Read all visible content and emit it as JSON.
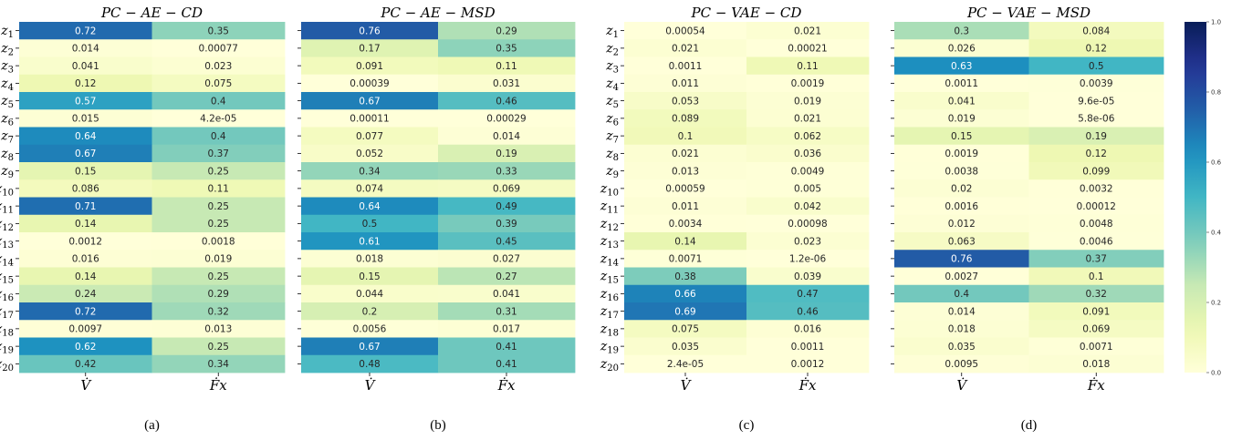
{
  "chart_data": [
    {
      "type": "heatmap",
      "title": "PC − AE − CD",
      "caption": "(a)",
      "columns": [
        "V̇",
        "Ḟx"
      ],
      "rows": [
        "z1",
        "z2",
        "z3",
        "z4",
        "z5",
        "z6",
        "z7",
        "z8",
        "z9",
        "z10",
        "z11",
        "z12",
        "z13",
        "z14",
        "z15",
        "z16",
        "z17",
        "z18",
        "z19",
        "z20"
      ],
      "values": [
        [
          0.72,
          0.35
        ],
        [
          0.014,
          0.00077
        ],
        [
          0.041,
          0.023
        ],
        [
          0.12,
          0.075
        ],
        [
          0.57,
          0.4
        ],
        [
          0.015,
          4.2e-05
        ],
        [
          0.64,
          0.4
        ],
        [
          0.67,
          0.37
        ],
        [
          0.15,
          0.25
        ],
        [
          0.086,
          0.11
        ],
        [
          0.71,
          0.25
        ],
        [
          0.14,
          0.25
        ],
        [
          0.0012,
          0.0018
        ],
        [
          0.016,
          0.019
        ],
        [
          0.14,
          0.25
        ],
        [
          0.24,
          0.29
        ],
        [
          0.72,
          0.32
        ],
        [
          0.0097,
          0.013
        ],
        [
          0.62,
          0.25
        ],
        [
          0.42,
          0.34
        ]
      ],
      "labels": [
        [
          "0.72",
          "0.35"
        ],
        [
          "0.014",
          "0.00077"
        ],
        [
          "0.041",
          "0.023"
        ],
        [
          "0.12",
          "0.075"
        ],
        [
          "0.57",
          "0.4"
        ],
        [
          "0.015",
          "4.2e-05"
        ],
        [
          "0.64",
          "0.4"
        ],
        [
          "0.67",
          "0.37"
        ],
        [
          "0.15",
          "0.25"
        ],
        [
          "0.086",
          "0.11"
        ],
        [
          "0.71",
          "0.25"
        ],
        [
          "0.14",
          "0.25"
        ],
        [
          "0.0012",
          "0.0018"
        ],
        [
          "0.016",
          "0.019"
        ],
        [
          "0.14",
          "0.25"
        ],
        [
          "0.24",
          "0.29"
        ],
        [
          "0.72",
          "0.32"
        ],
        [
          "0.0097",
          "0.013"
        ],
        [
          "0.62",
          "0.25"
        ],
        [
          "0.42",
          "0.34"
        ]
      ]
    },
    {
      "type": "heatmap",
      "title": "PC − AE − MSD",
      "caption": "(b)",
      "columns": [
        "V̇",
        "Ḟx"
      ],
      "rows": [],
      "values": [
        [
          0.76,
          0.29
        ],
        [
          0.17,
          0.35
        ],
        [
          0.091,
          0.11
        ],
        [
          0.00039,
          0.031
        ],
        [
          0.67,
          0.46
        ],
        [
          0.00011,
          0.00029
        ],
        [
          0.077,
          0.014
        ],
        [
          0.052,
          0.19
        ],
        [
          0.34,
          0.33
        ],
        [
          0.074,
          0.069
        ],
        [
          0.64,
          0.49
        ],
        [
          0.5,
          0.39
        ],
        [
          0.61,
          0.45
        ],
        [
          0.018,
          0.027
        ],
        [
          0.15,
          0.27
        ],
        [
          0.044,
          0.041
        ],
        [
          0.2,
          0.31
        ],
        [
          0.0056,
          0.017
        ],
        [
          0.67,
          0.41
        ],
        [
          0.48,
          0.41
        ]
      ],
      "labels": [
        [
          "0.76",
          "0.29"
        ],
        [
          "0.17",
          "0.35"
        ],
        [
          "0.091",
          "0.11"
        ],
        [
          "0.00039",
          "0.031"
        ],
        [
          "0.67",
          "0.46"
        ],
        [
          "0.00011",
          "0.00029"
        ],
        [
          "0.077",
          "0.014"
        ],
        [
          "0.052",
          "0.19"
        ],
        [
          "0.34",
          "0.33"
        ],
        [
          "0.074",
          "0.069"
        ],
        [
          "0.64",
          "0.49"
        ],
        [
          "0.5",
          "0.39"
        ],
        [
          "0.61",
          "0.45"
        ],
        [
          "0.018",
          "0.027"
        ],
        [
          "0.15",
          "0.27"
        ],
        [
          "0.044",
          "0.041"
        ],
        [
          "0.2",
          "0.31"
        ],
        [
          "0.0056",
          "0.017"
        ],
        [
          "0.67",
          "0.41"
        ],
        [
          "0.48",
          "0.41"
        ]
      ]
    },
    {
      "type": "heatmap",
      "title": "PC − VAE − CD",
      "caption": "(c)",
      "columns": [
        "V̇",
        "Ḟx"
      ],
      "rows": [
        "z1",
        "z2",
        "z3",
        "z4",
        "z5",
        "z6",
        "z7",
        "z8",
        "z9",
        "z10",
        "z11",
        "z12",
        "z13",
        "z14",
        "z15",
        "z16",
        "z17",
        "z18",
        "z19",
        "z20"
      ],
      "values": [
        [
          0.00054,
          0.021
        ],
        [
          0.021,
          0.00021
        ],
        [
          0.0011,
          0.11
        ],
        [
          0.011,
          0.0019
        ],
        [
          0.053,
          0.019
        ],
        [
          0.089,
          0.021
        ],
        [
          0.1,
          0.062
        ],
        [
          0.021,
          0.036
        ],
        [
          0.013,
          0.0049
        ],
        [
          0.00059,
          0.005
        ],
        [
          0.011,
          0.042
        ],
        [
          0.0034,
          0.00098
        ],
        [
          0.14,
          0.023
        ],
        [
          0.0071,
          1.2e-06
        ],
        [
          0.38,
          0.039
        ],
        [
          0.66,
          0.47
        ],
        [
          0.69,
          0.46
        ],
        [
          0.075,
          0.016
        ],
        [
          0.035,
          0.0011
        ],
        [
          2.4e-05,
          0.0012
        ]
      ],
      "labels": [
        [
          "0.00054",
          "0.021"
        ],
        [
          "0.021",
          "0.00021"
        ],
        [
          "0.0011",
          "0.11"
        ],
        [
          "0.011",
          "0.0019"
        ],
        [
          "0.053",
          "0.019"
        ],
        [
          "0.089",
          "0.021"
        ],
        [
          "0.1",
          "0.062"
        ],
        [
          "0.021",
          "0.036"
        ],
        [
          "0.013",
          "0.0049"
        ],
        [
          "0.00059",
          "0.005"
        ],
        [
          "0.011",
          "0.042"
        ],
        [
          "0.0034",
          "0.00098"
        ],
        [
          "0.14",
          "0.023"
        ],
        [
          "0.0071",
          "1.2e-06"
        ],
        [
          "0.38",
          "0.039"
        ],
        [
          "0.66",
          "0.47"
        ],
        [
          "0.69",
          "0.46"
        ],
        [
          "0.075",
          "0.016"
        ],
        [
          "0.035",
          "0.0011"
        ],
        [
          "2.4e-05",
          "0.0012"
        ]
      ]
    },
    {
      "type": "heatmap",
      "title": "PC − VAE − MSD",
      "caption": "(d)",
      "columns": [
        "V̇",
        "Ḟx"
      ],
      "rows": [],
      "values": [
        [
          0.3,
          0.084
        ],
        [
          0.026,
          0.12
        ],
        [
          0.63,
          0.5
        ],
        [
          0.0011,
          0.0039
        ],
        [
          0.041,
          9.6e-05
        ],
        [
          0.019,
          5.8e-06
        ],
        [
          0.15,
          0.19
        ],
        [
          0.0019,
          0.12
        ],
        [
          0.0038,
          0.099
        ],
        [
          0.02,
          0.0032
        ],
        [
          0.0016,
          0.00012
        ],
        [
          0.012,
          0.0048
        ],
        [
          0.063,
          0.0046
        ],
        [
          0.76,
          0.37
        ],
        [
          0.0027,
          0.1
        ],
        [
          0.4,
          0.32
        ],
        [
          0.014,
          0.091
        ],
        [
          0.018,
          0.069
        ],
        [
          0.035,
          0.0071
        ],
        [
          0.0095,
          0.018
        ]
      ],
      "labels": [
        [
          "0.3",
          "0.084"
        ],
        [
          "0.026",
          "0.12"
        ],
        [
          "0.63",
          "0.5"
        ],
        [
          "0.0011",
          "0.0039"
        ],
        [
          "0.041",
          "9.6e-05"
        ],
        [
          "0.019",
          "5.8e-06"
        ],
        [
          "0.15",
          "0.19"
        ],
        [
          "0.0019",
          "0.12"
        ],
        [
          "0.0038",
          "0.099"
        ],
        [
          "0.02",
          "0.0032"
        ],
        [
          "0.0016",
          "0.00012"
        ],
        [
          "0.012",
          "0.0048"
        ],
        [
          "0.063",
          "0.0046"
        ],
        [
          "0.76",
          "0.37"
        ],
        [
          "0.0027",
          "0.1"
        ],
        [
          "0.4",
          "0.32"
        ],
        [
          "0.014",
          "0.091"
        ],
        [
          "0.018",
          "0.069"
        ],
        [
          "0.035",
          "0.0071"
        ],
        [
          "0.0095",
          "0.018"
        ]
      ]
    }
  ],
  "colorbar": {
    "colormap": "YlGnBu",
    "range": [
      0.0,
      1.0
    ],
    "ticks": [
      "0.0",
      "0.2",
      "0.4",
      "0.6",
      "0.8",
      "1.0"
    ]
  }
}
